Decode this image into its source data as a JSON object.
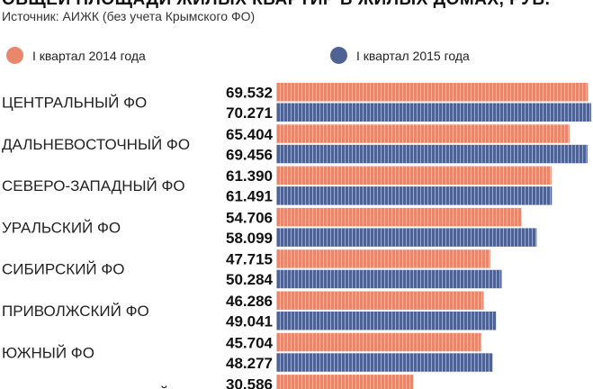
{
  "header": {
    "title": "ОБЩЕЙ ПЛОЩАДИ ЖИЛЫХ КВАРТИР В ЖИЛЫХ ДОМАХ, РУБ.",
    "source": "Источник: АИЖК (без учета Крымского ФО)"
  },
  "colors": {
    "series_2014": "#e8876b",
    "series_2015": "#4e6293"
  },
  "chart_data": {
    "type": "bar",
    "orientation": "horizontal",
    "categories": [
      "ЦЕНТРАЛЬНЫЙ ФО",
      "ДАЛЬНЕВОСТОЧНЫЙ ФО",
      "СЕВЕРО-ЗАПАДНЫЙ ФО",
      "УРАЛЬСКИЙ ФО",
      "СИБИРСКИЙ ФО",
      "ПРИВОЛЖСКИЙ ФО",
      "ЮЖНЫЙ ФО",
      "СЕВЕРО-КАВКАЗСКИЙ ФО"
    ],
    "series": [
      {
        "name": "I квартал 2014 года",
        "values": [
          69532,
          65404,
          61390,
          54706,
          47715,
          46286,
          45704,
          30586
        ],
        "labels": [
          "69.532",
          "65.404",
          "61.390",
          "54.706",
          "47.715",
          "46.286",
          "45.704",
          "30.586"
        ]
      },
      {
        "name": "I квартал 2015 года",
        "values": [
          70271,
          69456,
          61491,
          58099,
          50284,
          49041,
          48277,
          null
        ],
        "labels": [
          "70.271",
          "69.456",
          "61.491",
          "58.099",
          "50.284",
          "49.041",
          "48.277",
          ""
        ]
      }
    ],
    "grid": false,
    "legend": "top"
  }
}
